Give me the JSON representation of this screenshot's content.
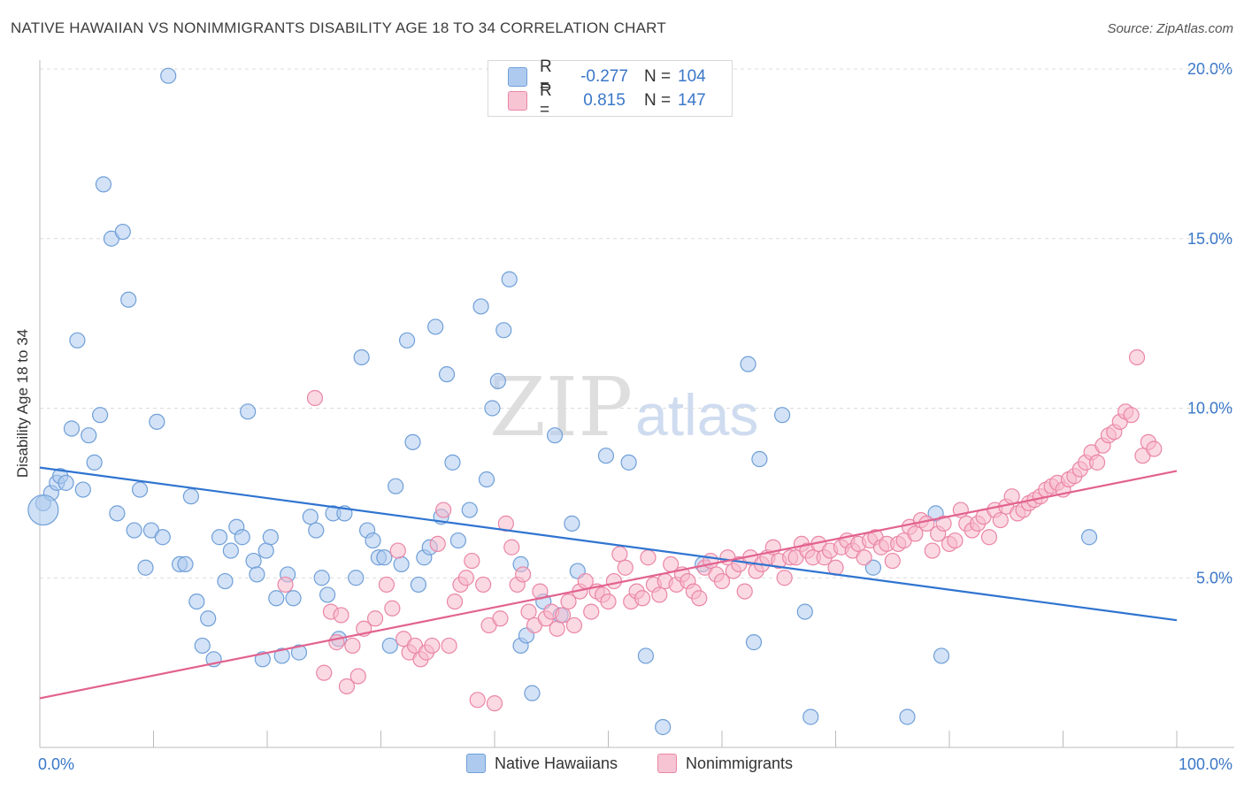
{
  "title": "NATIVE HAWAIIAN VS NONIMMIGRANTS DISABILITY AGE 18 TO 34 CORRELATION CHART",
  "source": "Source: ZipAtlas.com",
  "watermark": {
    "zip": "ZIP",
    "atlas": "atlas"
  },
  "legend_top": [
    {
      "r_label": "R =",
      "r_value": "-0.277",
      "n_label": "N =",
      "n_value": "104"
    },
    {
      "r_label": "R =",
      "r_value": "0.815",
      "n_label": "N =",
      "n_value": "147"
    }
  ],
  "legend_bottom": [
    "Native Hawaiians",
    "Nonimmigrants"
  ],
  "chart_data": {
    "type": "scatter",
    "title": "NATIVE HAWAIIAN VS NONIMMIGRANTS DISABILITY AGE 18 TO 34 CORRELATION CHART",
    "xlabel": "",
    "ylabel": "Disability Age 18 to 34",
    "xlim": [
      0,
      100
    ],
    "ylim": [
      0,
      20.5
    ],
    "x_tick_labels": [
      "0.0%",
      "100.0%"
    ],
    "y_ticks": [
      5,
      10,
      15,
      20
    ],
    "y_tick_labels": [
      "5.0%",
      "10.0%",
      "15.0%",
      "20.0%"
    ],
    "grid": "horizontal-dashed",
    "legend": "top-center",
    "colors": {
      "blue_fill": "#aecbef",
      "blue_stroke": "#6f9fd8",
      "blue_line": "#2f74d0",
      "pink_fill": "#f7b9cc",
      "pink_stroke": "#ea86a6",
      "pink_line": "#e2628f",
      "tick_text": "#3a77c8"
    },
    "series": [
      {
        "name": "Native Hawaiians",
        "r": -0.277,
        "n": 104,
        "trend": {
          "x": [
            0,
            100
          ],
          "y": [
            8.25,
            3.75
          ]
        },
        "points": [
          [
            0.3,
            7.2
          ],
          [
            1,
            7.5
          ],
          [
            1.5,
            7.8
          ],
          [
            1.8,
            8.0
          ],
          [
            2.3,
            7.8
          ],
          [
            2.8,
            9.4
          ],
          [
            3.3,
            12.0
          ],
          [
            3.8,
            7.6
          ],
          [
            4.3,
            9.2
          ],
          [
            4.8,
            8.4
          ],
          [
            5.3,
            9.8
          ],
          [
            5.6,
            16.6
          ],
          [
            6.3,
            15.0
          ],
          [
            6.8,
            6.9
          ],
          [
            7.3,
            15.2
          ],
          [
            7.8,
            13.2
          ],
          [
            8.3,
            6.4
          ],
          [
            8.8,
            7.6
          ],
          [
            9.3,
            5.3
          ],
          [
            9.8,
            6.4
          ],
          [
            10.3,
            9.6
          ],
          [
            10.8,
            6.2
          ],
          [
            11.3,
            19.8
          ],
          [
            12.3,
            5.4
          ],
          [
            12.8,
            5.4
          ],
          [
            13.3,
            7.4
          ],
          [
            13.8,
            4.3
          ],
          [
            14.3,
            3.0
          ],
          [
            14.8,
            3.8
          ],
          [
            15.3,
            2.6
          ],
          [
            15.8,
            6.2
          ],
          [
            16.3,
            4.9
          ],
          [
            16.8,
            5.8
          ],
          [
            17.3,
            6.5
          ],
          [
            17.8,
            6.2
          ],
          [
            18.3,
            9.9
          ],
          [
            18.8,
            5.5
          ],
          [
            19.1,
            5.1
          ],
          [
            19.6,
            2.6
          ],
          [
            19.9,
            5.8
          ],
          [
            20.3,
            6.2
          ],
          [
            20.8,
            4.4
          ],
          [
            21.3,
            2.7
          ],
          [
            21.8,
            5.1
          ],
          [
            22.3,
            4.4
          ],
          [
            22.8,
            2.8
          ],
          [
            23.8,
            6.8
          ],
          [
            24.3,
            6.4
          ],
          [
            24.8,
            5.0
          ],
          [
            25.3,
            4.5
          ],
          [
            25.8,
            6.9
          ],
          [
            26.3,
            3.2
          ],
          [
            26.8,
            6.9
          ],
          [
            27.8,
            5.0
          ],
          [
            28.3,
            11.5
          ],
          [
            28.8,
            6.4
          ],
          [
            29.3,
            6.1
          ],
          [
            29.8,
            5.6
          ],
          [
            30.3,
            5.6
          ],
          [
            30.8,
            3.0
          ],
          [
            31.3,
            7.7
          ],
          [
            31.8,
            5.4
          ],
          [
            32.3,
            12.0
          ],
          [
            32.8,
            9.0
          ],
          [
            33.3,
            4.8
          ],
          [
            33.8,
            5.6
          ],
          [
            34.3,
            5.9
          ],
          [
            34.8,
            12.4
          ],
          [
            35.3,
            6.8
          ],
          [
            35.8,
            11.0
          ],
          [
            36.3,
            8.4
          ],
          [
            36.8,
            6.1
          ],
          [
            37.8,
            7.0
          ],
          [
            38.8,
            13.0
          ],
          [
            39.3,
            7.9
          ],
          [
            39.8,
            10.0
          ],
          [
            40.3,
            10.8
          ],
          [
            40.8,
            12.3
          ],
          [
            41.3,
            13.8
          ],
          [
            42.3,
            5.4
          ],
          [
            42.3,
            3.0
          ],
          [
            42.8,
            3.3
          ],
          [
            43.3,
            1.6
          ],
          [
            44.3,
            4.3
          ],
          [
            45.3,
            9.2
          ],
          [
            45.8,
            3.9
          ],
          [
            46.8,
            6.6
          ],
          [
            47.3,
            5.2
          ],
          [
            49.8,
            8.6
          ],
          [
            51.8,
            8.4
          ],
          [
            53.3,
            2.7
          ],
          [
            54.8,
            0.6
          ],
          [
            58.3,
            5.4
          ],
          [
            62.3,
            11.3
          ],
          [
            62.8,
            3.1
          ],
          [
            63.3,
            8.5
          ],
          [
            65.3,
            9.8
          ],
          [
            67.3,
            4.0
          ],
          [
            67.8,
            0.9
          ],
          [
            73.3,
            5.3
          ],
          [
            76.3,
            0.9
          ],
          [
            78.8,
            6.9
          ],
          [
            79.3,
            2.7
          ],
          [
            92.3,
            6.2
          ]
        ]
      },
      {
        "name": "Nonimmigrants",
        "r": 0.815,
        "n": 147,
        "trend": {
          "x": [
            0,
            100
          ],
          "y": [
            1.45,
            8.15
          ]
        },
        "points": [
          [
            21.6,
            4.8
          ],
          [
            24.2,
            10.3
          ],
          [
            25.0,
            2.2
          ],
          [
            25.6,
            4.0
          ],
          [
            26.1,
            3.1
          ],
          [
            26.5,
            3.9
          ],
          [
            27.0,
            1.8
          ],
          [
            27.5,
            3.0
          ],
          [
            28.0,
            2.1
          ],
          [
            28.5,
            3.5
          ],
          [
            29.5,
            3.8
          ],
          [
            30.5,
            4.8
          ],
          [
            31.0,
            4.1
          ],
          [
            31.5,
            5.8
          ],
          [
            32.0,
            3.2
          ],
          [
            32.5,
            2.8
          ],
          [
            33.0,
            3.0
          ],
          [
            33.5,
            2.6
          ],
          [
            34.0,
            2.8
          ],
          [
            34.5,
            3.0
          ],
          [
            35.0,
            6.0
          ],
          [
            35.5,
            7.0
          ],
          [
            36.0,
            3.0
          ],
          [
            36.5,
            4.3
          ],
          [
            37.0,
            4.8
          ],
          [
            37.5,
            5.0
          ],
          [
            38.0,
            5.5
          ],
          [
            38.5,
            1.4
          ],
          [
            39.0,
            4.8
          ],
          [
            39.5,
            3.6
          ],
          [
            40.0,
            1.3
          ],
          [
            40.5,
            3.8
          ],
          [
            41.0,
            6.6
          ],
          [
            41.5,
            5.9
          ],
          [
            42.0,
            4.8
          ],
          [
            42.5,
            5.1
          ],
          [
            43.0,
            4.0
          ],
          [
            43.5,
            3.6
          ],
          [
            44.0,
            4.6
          ],
          [
            44.5,
            3.8
          ],
          [
            45.0,
            4.0
          ],
          [
            45.5,
            3.5
          ],
          [
            46.0,
            3.9
          ],
          [
            46.5,
            4.3
          ],
          [
            47.0,
            3.6
          ],
          [
            47.5,
            4.6
          ],
          [
            48.0,
            4.9
          ],
          [
            48.5,
            4.0
          ],
          [
            49.0,
            4.6
          ],
          [
            49.5,
            4.5
          ],
          [
            50.0,
            4.3
          ],
          [
            50.5,
            4.9
          ],
          [
            51.0,
            5.7
          ],
          [
            51.5,
            5.3
          ],
          [
            52.0,
            4.3
          ],
          [
            52.5,
            4.6
          ],
          [
            53.0,
            4.4
          ],
          [
            53.5,
            5.6
          ],
          [
            54.0,
            4.8
          ],
          [
            54.5,
            4.5
          ],
          [
            55.0,
            4.9
          ],
          [
            55.5,
            5.4
          ],
          [
            56.0,
            4.8
          ],
          [
            56.5,
            5.1
          ],
          [
            57.0,
            4.9
          ],
          [
            57.5,
            4.6
          ],
          [
            58.0,
            4.4
          ],
          [
            58.5,
            5.3
          ],
          [
            59.0,
            5.5
          ],
          [
            59.5,
            5.1
          ],
          [
            60.0,
            4.9
          ],
          [
            60.5,
            5.6
          ],
          [
            61.0,
            5.2
          ],
          [
            61.5,
            5.4
          ],
          [
            62.0,
            4.6
          ],
          [
            62.5,
            5.6
          ],
          [
            63.0,
            5.2
          ],
          [
            63.5,
            5.4
          ],
          [
            64.0,
            5.6
          ],
          [
            64.5,
            5.9
          ],
          [
            65.0,
            5.5
          ],
          [
            65.5,
            5.0
          ],
          [
            66.0,
            5.6
          ],
          [
            66.5,
            5.6
          ],
          [
            67.0,
            6.0
          ],
          [
            67.5,
            5.8
          ],
          [
            68.0,
            5.6
          ],
          [
            68.5,
            6.0
          ],
          [
            69.0,
            5.6
          ],
          [
            69.5,
            5.8
          ],
          [
            70.0,
            5.3
          ],
          [
            70.5,
            5.9
          ],
          [
            71.0,
            6.1
          ],
          [
            71.5,
            5.8
          ],
          [
            72.0,
            6.0
          ],
          [
            72.5,
            5.6
          ],
          [
            73.0,
            6.1
          ],
          [
            73.5,
            6.2
          ],
          [
            74.0,
            5.9
          ],
          [
            74.5,
            6.0
          ],
          [
            75.0,
            5.5
          ],
          [
            75.5,
            6.0
          ],
          [
            76.0,
            6.1
          ],
          [
            76.5,
            6.5
          ],
          [
            77.0,
            6.3
          ],
          [
            77.5,
            6.7
          ],
          [
            78.0,
            6.6
          ],
          [
            78.5,
            5.8
          ],
          [
            79.0,
            6.3
          ],
          [
            79.5,
            6.6
          ],
          [
            80.0,
            6.0
          ],
          [
            80.5,
            6.1
          ],
          [
            81.0,
            7.0
          ],
          [
            81.5,
            6.6
          ],
          [
            82.0,
            6.4
          ],
          [
            82.5,
            6.6
          ],
          [
            83.0,
            6.8
          ],
          [
            83.5,
            6.2
          ],
          [
            84.0,
            7.0
          ],
          [
            84.5,
            6.7
          ],
          [
            85.0,
            7.1
          ],
          [
            85.5,
            7.4
          ],
          [
            86.0,
            6.9
          ],
          [
            86.5,
            7.0
          ],
          [
            87.0,
            7.2
          ],
          [
            87.5,
            7.3
          ],
          [
            88.0,
            7.4
          ],
          [
            88.5,
            7.6
          ],
          [
            89.0,
            7.7
          ],
          [
            89.5,
            7.8
          ],
          [
            90.0,
            7.6
          ],
          [
            90.5,
            7.9
          ],
          [
            91.0,
            8.0
          ],
          [
            91.5,
            8.2
          ],
          [
            92.0,
            8.4
          ],
          [
            92.5,
            8.7
          ],
          [
            93.0,
            8.4
          ],
          [
            93.5,
            8.9
          ],
          [
            94.0,
            9.2
          ],
          [
            94.5,
            9.3
          ],
          [
            95.0,
            9.6
          ],
          [
            95.5,
            9.9
          ],
          [
            96.0,
            9.8
          ],
          [
            96.5,
            11.5
          ],
          [
            97.0,
            8.6
          ],
          [
            97.5,
            9.0
          ],
          [
            98.0,
            8.8
          ]
        ]
      }
    ]
  }
}
